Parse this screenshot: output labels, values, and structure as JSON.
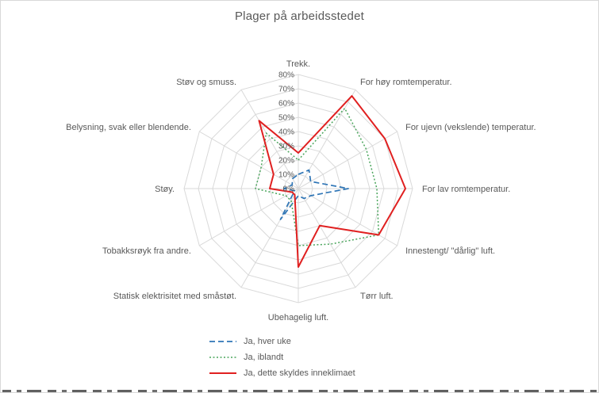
{
  "chart_data": {
    "type": "radar",
    "title": "Plager på arbeidsstedet",
    "categories": [
      "Trekk.",
      "For høy romtemperatur.",
      "For ujevn (vekslende) temperatur.",
      "For lav romtemperatur.",
      "Innestengt/ \"dårlig\" luft.",
      "Tørr luft.",
      "Ubehagelig luft.",
      "Statisk elektrisitet med småstøt.",
      "Tobakksrøyk fra andre.",
      "Støy.",
      "Belysning, svak eller blendende.",
      "Støv og smuss."
    ],
    "axis": {
      "min": 0,
      "max": 80,
      "step": 10,
      "tick_labels": [
        "0%",
        "10%",
        "20%",
        "30%",
        "40%",
        "50%",
        "60%",
        "70%",
        "80%"
      ]
    },
    "grid": true,
    "legend_position": "bottom",
    "series": [
      {
        "name": "Ja, hver uke",
        "color": "#2e75b6",
        "dash": "dashed",
        "values": [
          10,
          15,
          10,
          35,
          10,
          8,
          5,
          25,
          3,
          10,
          5,
          8
        ]
      },
      {
        "name": "Ja, iblandt",
        "color": "#4aa55c",
        "dash": "dotted",
        "values": [
          20,
          65,
          55,
          55,
          65,
          45,
          40,
          10,
          10,
          30,
          30,
          45
        ]
      },
      {
        "name": "Ja, dette skyldes inneklimaet",
        "color": "#e02020",
        "dash": "solid",
        "values": [
          25,
          75,
          70,
          75,
          65,
          30,
          55,
          5,
          5,
          20,
          20,
          55
        ]
      }
    ]
  }
}
